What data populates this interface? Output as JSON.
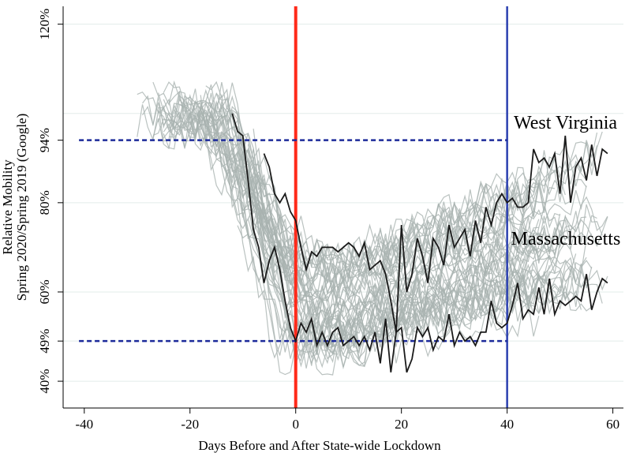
{
  "chart_data": {
    "type": "line",
    "xlabel": "Days Before and After State-wide Lockdown",
    "ylabel_lines": [
      "Relative Mobility",
      "Spring 2020/Spring 2019 (Google)"
    ],
    "xlim": [
      -44,
      62
    ],
    "ylim": [
      34,
      124
    ],
    "x_ticks": [
      -40,
      -20,
      0,
      20,
      40,
      60
    ],
    "x_tick_labels": [
      "-40",
      "-20",
      "0",
      "20",
      "40",
      "60"
    ],
    "y_ticks": [
      40,
      49,
      60,
      80,
      94,
      120
    ],
    "y_tick_labels": [
      "40%",
      "49%",
      "60%",
      "80%",
      "94%",
      "120%"
    ],
    "gridlines_y": [
      40,
      49,
      60,
      80,
      100,
      120
    ],
    "grid": true,
    "vertical_lines": [
      {
        "x": 0,
        "color": "#ff2a1a"
      },
      {
        "x": 40,
        "color": "#2a3fb0"
      }
    ],
    "reference_lines": [
      {
        "y": 94,
        "x_range": [
          -41,
          40
        ],
        "color": "#1c2a9a",
        "style": "dashed"
      },
      {
        "y": 49,
        "x_range": [
          -41,
          40
        ],
        "color": "#1c2a9a",
        "style": "dashed"
      }
    ],
    "annotations": [
      {
        "text": "West Virginia",
        "x": 40.5,
        "y": 98
      },
      {
        "text": "Massachusetts",
        "x": 40,
        "y": 72
      }
    ],
    "background_series_count": 48,
    "background_color": "#a9b3b0",
    "highlight_color": "#1a1a1a",
    "series": [
      {
        "name": "West Virginia",
        "x": [
          -6,
          -5,
          -4,
          -3,
          -2,
          -1,
          0,
          1,
          2,
          3,
          4,
          5,
          6,
          7,
          8,
          9,
          10,
          11,
          12,
          13,
          14,
          15,
          16,
          17,
          18,
          19,
          20,
          21,
          22,
          23,
          24,
          25,
          26,
          27,
          28,
          29,
          30,
          31,
          32,
          33,
          34,
          35,
          36,
          37,
          38,
          39,
          40,
          41,
          42,
          43,
          44,
          45,
          46,
          47,
          48,
          49,
          50,
          51,
          52,
          53,
          54,
          55,
          56,
          57,
          58,
          59
        ],
        "y": [
          91,
          88,
          82,
          80,
          82,
          78,
          76,
          70,
          65,
          69,
          68,
          70,
          70,
          70,
          69,
          70,
          71,
          70,
          68,
          71,
          65,
          66,
          67,
          64,
          58,
          51,
          75,
          60,
          64,
          72,
          68,
          62,
          72,
          70,
          66,
          75,
          70,
          72,
          74,
          68,
          76,
          71,
          79,
          75,
          80,
          82,
          80,
          81,
          79,
          79,
          80,
          92,
          89,
          90,
          88,
          91,
          82,
          95,
          80,
          88,
          90,
          85,
          93,
          86,
          92,
          91
        ],
        "color": "#1a1a1a"
      },
      {
        "name": "Massachusetts",
        "x": [
          -12,
          -11,
          -10,
          -9,
          -8,
          -7,
          -6,
          -5,
          -4,
          -3,
          -2,
          -1,
          0,
          1,
          2,
          3,
          4,
          5,
          6,
          7,
          8,
          9,
          10,
          11,
          12,
          13,
          14,
          15,
          16,
          17,
          18,
          19,
          20,
          21,
          22,
          23,
          24,
          25,
          26,
          27,
          28,
          29,
          30,
          31,
          32,
          33,
          34,
          35,
          36,
          37,
          38,
          39,
          40,
          41,
          42,
          43,
          44,
          45,
          46,
          47,
          48,
          49,
          50,
          51,
          52,
          53,
          54,
          55,
          56,
          57,
          58,
          59
        ],
        "y": [
          100,
          96,
          95,
          85,
          74,
          70,
          62,
          67,
          70,
          65,
          58,
          52,
          49,
          53,
          51,
          54,
          48,
          51,
          48,
          51,
          52,
          48,
          49,
          50,
          48,
          50,
          47,
          51,
          44,
          54,
          42,
          51,
          52,
          42,
          45,
          52,
          50,
          52,
          47,
          50,
          49,
          55,
          48,
          51,
          49,
          50,
          48,
          51,
          51,
          58,
          53,
          52,
          53,
          57,
          62,
          54,
          56,
          55,
          61,
          55,
          63,
          55,
          58,
          57,
          58,
          59,
          58,
          64,
          56,
          60,
          63,
          62
        ],
        "color": "#1a1a1a"
      }
    ]
  }
}
